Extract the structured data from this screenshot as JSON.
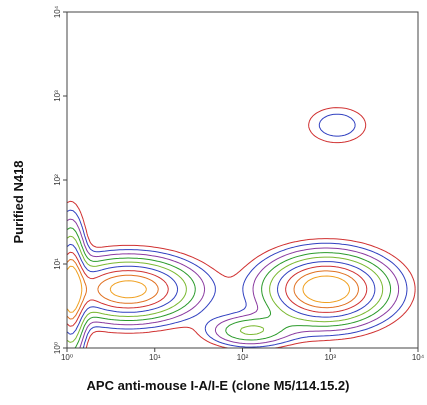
{
  "chart_data": {
    "type": "contour",
    "xlabel": "APC anti-mouse I-A/I-E (clone M5/114.15.2)",
    "ylabel": "Purified N418",
    "x_scale": "log",
    "y_scale": "log",
    "xlim": [
      1,
      10000
    ],
    "ylim": [
      1,
      10000
    ],
    "x_ticks": [
      "10⁰",
      "10¹",
      "10²",
      "10³",
      "10⁴"
    ],
    "y_ticks": [
      "10⁰",
      "10¹",
      "10²",
      "10³",
      "10⁴"
    ],
    "level_colors": [
      "#d03030",
      "#3040c0",
      "#8a3aa0",
      "#2a9a2a",
      "#7ab830",
      "#e07020",
      "#f0a020"
    ],
    "populations": [
      {
        "x": 5,
        "y": 5,
        "sx": 0.45,
        "sy": 0.22,
        "w": 1.0
      },
      {
        "x": 900,
        "y": 5,
        "sx": 0.42,
        "sy": 0.25,
        "w": 1.1
      },
      {
        "x": 1.1,
        "y": 5,
        "sx": 0.1,
        "sy": 0.45,
        "w": 0.9
      },
      {
        "x": 120,
        "y": 1.6,
        "sx": 0.3,
        "sy": 0.12,
        "w": 0.35
      },
      {
        "x": 1200,
        "y": 450,
        "sx": 0.25,
        "sy": 0.16,
        "w": 0.14
      }
    ],
    "grid": false
  }
}
